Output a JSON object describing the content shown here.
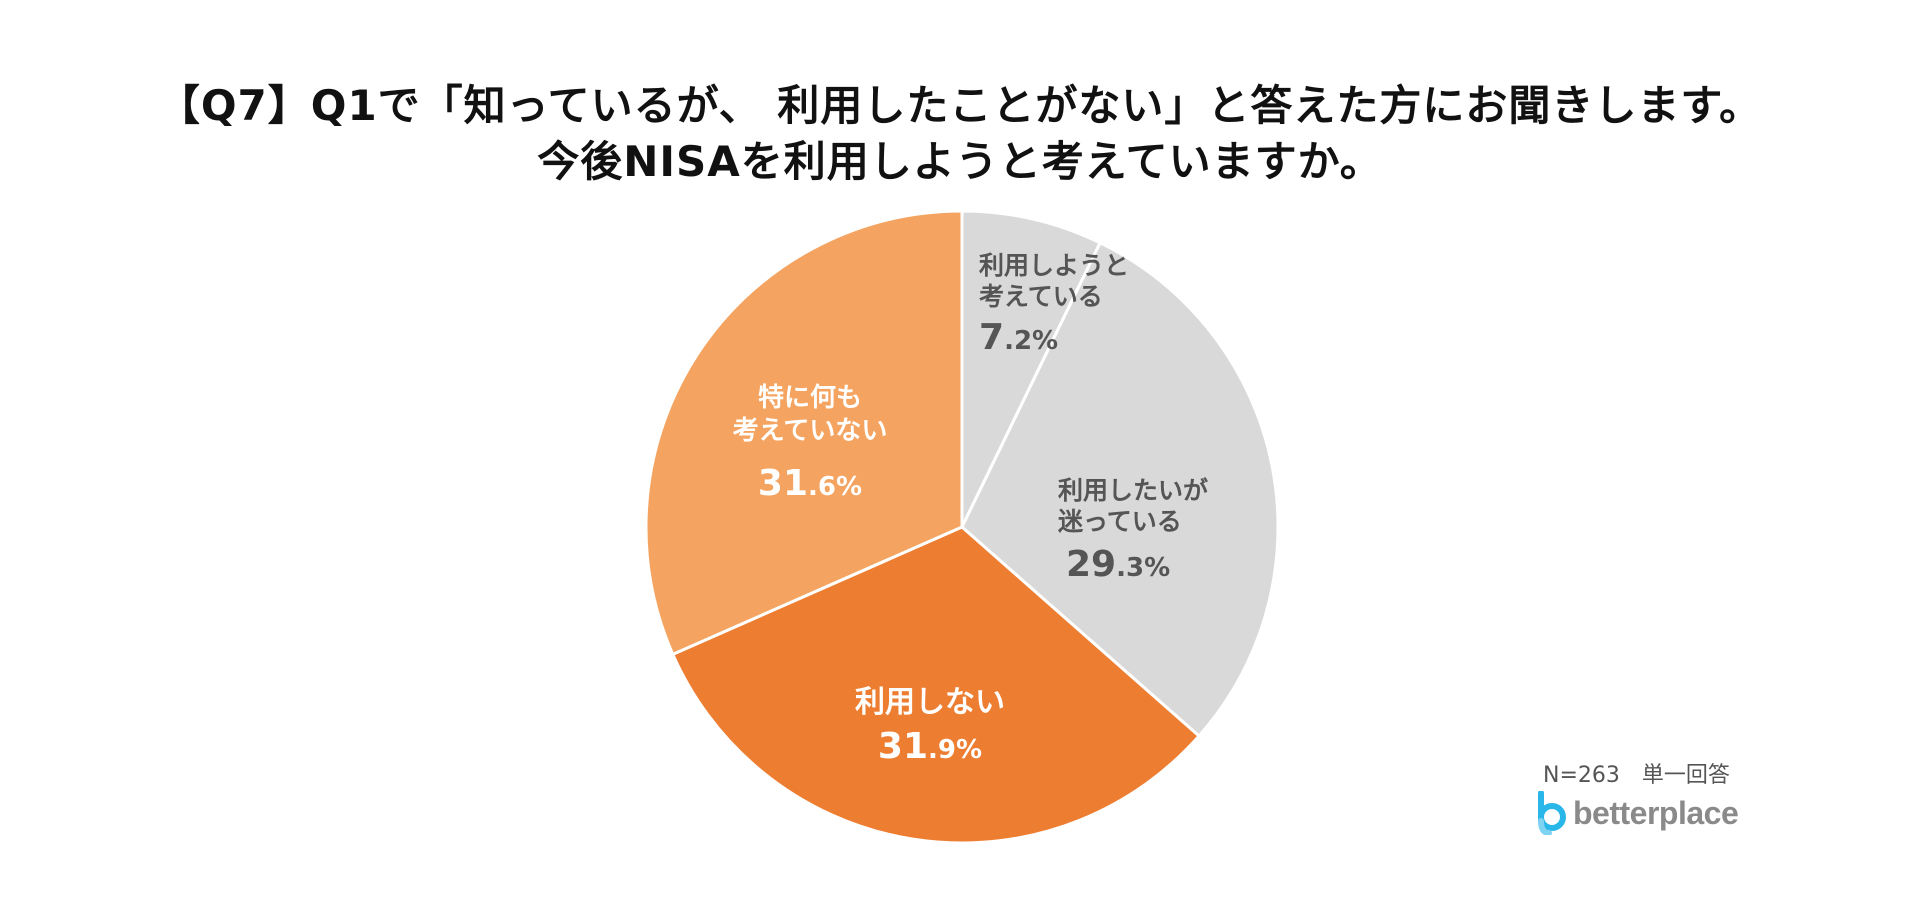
{
  "title": {
    "line1": "【Q7】Q1で「知っているが、 利用したことがない」と答えた方にお聞きします。",
    "line2": "今後NISAを利用しようと考えていますか。"
  },
  "labels": {
    "s1": {
      "line1": "利用しようと",
      "line2": "考えている",
      "int": "7",
      "dec": ".2%"
    },
    "s2": {
      "line1": "利用したいが",
      "line2": "迷っている",
      "int": "29",
      "dec": ".3%"
    },
    "s3": {
      "line1": "利用しない",
      "int": "31",
      "dec": ".9%"
    },
    "s4": {
      "line1": "特に何も",
      "line2": "考えていない",
      "int": "31",
      "dec": ".6%"
    }
  },
  "note": "N=263　単一回答",
  "logo": {
    "text": "betterplace",
    "icon": "betterplace-logo-icon",
    "icon_color": "#29b6e8"
  },
  "colors": {
    "slice_light_gray": "#d9d9d9",
    "slice_dark_orange": "#ed7d31",
    "slice_light_orange": "#f4a460",
    "separator": "#ffffff"
  },
  "chart_data": {
    "type": "pie",
    "title": "【Q7】Q1で「知っているが、 利用したことがない」と答えた方にお聞きします。今後NISAを利用しようと考えていますか。",
    "categories": [
      "利用しようと考えている",
      "利用したいが迷っている",
      "利用しない",
      "特に何も考えていない"
    ],
    "values": [
      7.2,
      29.3,
      31.9,
      31.6
    ],
    "unit": "%",
    "colors": [
      "#d9d9d9",
      "#d9d9d9",
      "#ed7d31",
      "#f4a460"
    ],
    "start_angle": "12 o'clock, clockwise",
    "annotations": [
      "N=263　単一回答"
    ],
    "legend": "none (labels inside slices)"
  }
}
